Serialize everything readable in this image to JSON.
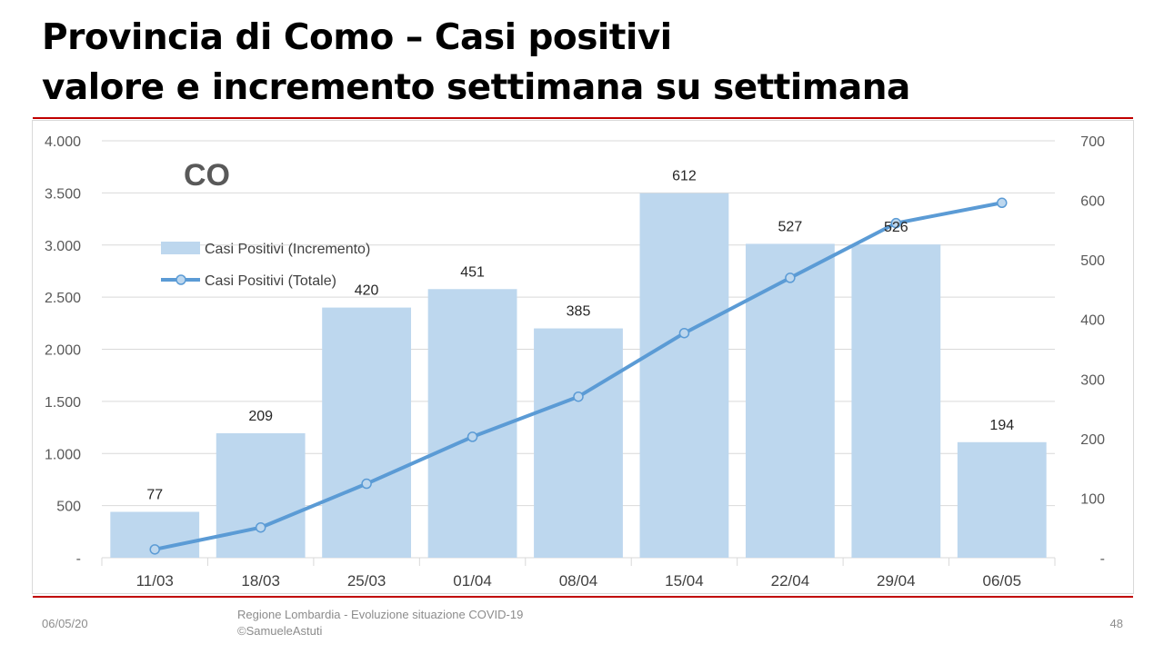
{
  "title": {
    "line1": "Provincia di Como – Casi positivi",
    "line2": "valore e incremento settimana su settimana"
  },
  "footer": {
    "date": "06/05/20",
    "source_line1": "Regione Lombardia - Evoluzione situazione COVID-19",
    "source_line2": "©SamueleAstuti",
    "page": "48"
  },
  "colors": {
    "bar": "#bdd7ee",
    "line": "#5b9bd5",
    "accent_rule": "#c00000",
    "grid": "#d9d9d9"
  },
  "chart_data": {
    "type": "bar",
    "annotation": "CO",
    "categories": [
      "11/03",
      "18/03",
      "25/03",
      "01/04",
      "08/04",
      "15/04",
      "22/04",
      "29/04",
      "06/05"
    ],
    "legend_position": "top-left",
    "grid": true,
    "left_axis": {
      "range": [
        0,
        4000
      ],
      "ticks": [
        "-",
        "500",
        "1.000",
        "1.500",
        "2.000",
        "2.500",
        "3.000",
        "3.500",
        "4.000"
      ]
    },
    "right_axis": {
      "range": [
        0,
        700
      ],
      "ticks": [
        "-",
        "100",
        "200",
        "300",
        "400",
        "500",
        "600",
        "700"
      ]
    },
    "series": [
      {
        "name": "Casi Positivi (Incremento)",
        "type": "bar",
        "axis": "right",
        "values": [
          77,
          209,
          420,
          451,
          385,
          612,
          527,
          526,
          194
        ],
        "data_labels": [
          "77",
          "209",
          "420",
          "451",
          "385",
          "612",
          "527",
          "526",
          "194"
        ]
      },
      {
        "name": "Casi Positivi (Totale)",
        "type": "line",
        "axis": "left",
        "values": [
          80,
          290,
          710,
          1160,
          1545,
          2155,
          2685,
          3210,
          3405
        ]
      }
    ]
  }
}
